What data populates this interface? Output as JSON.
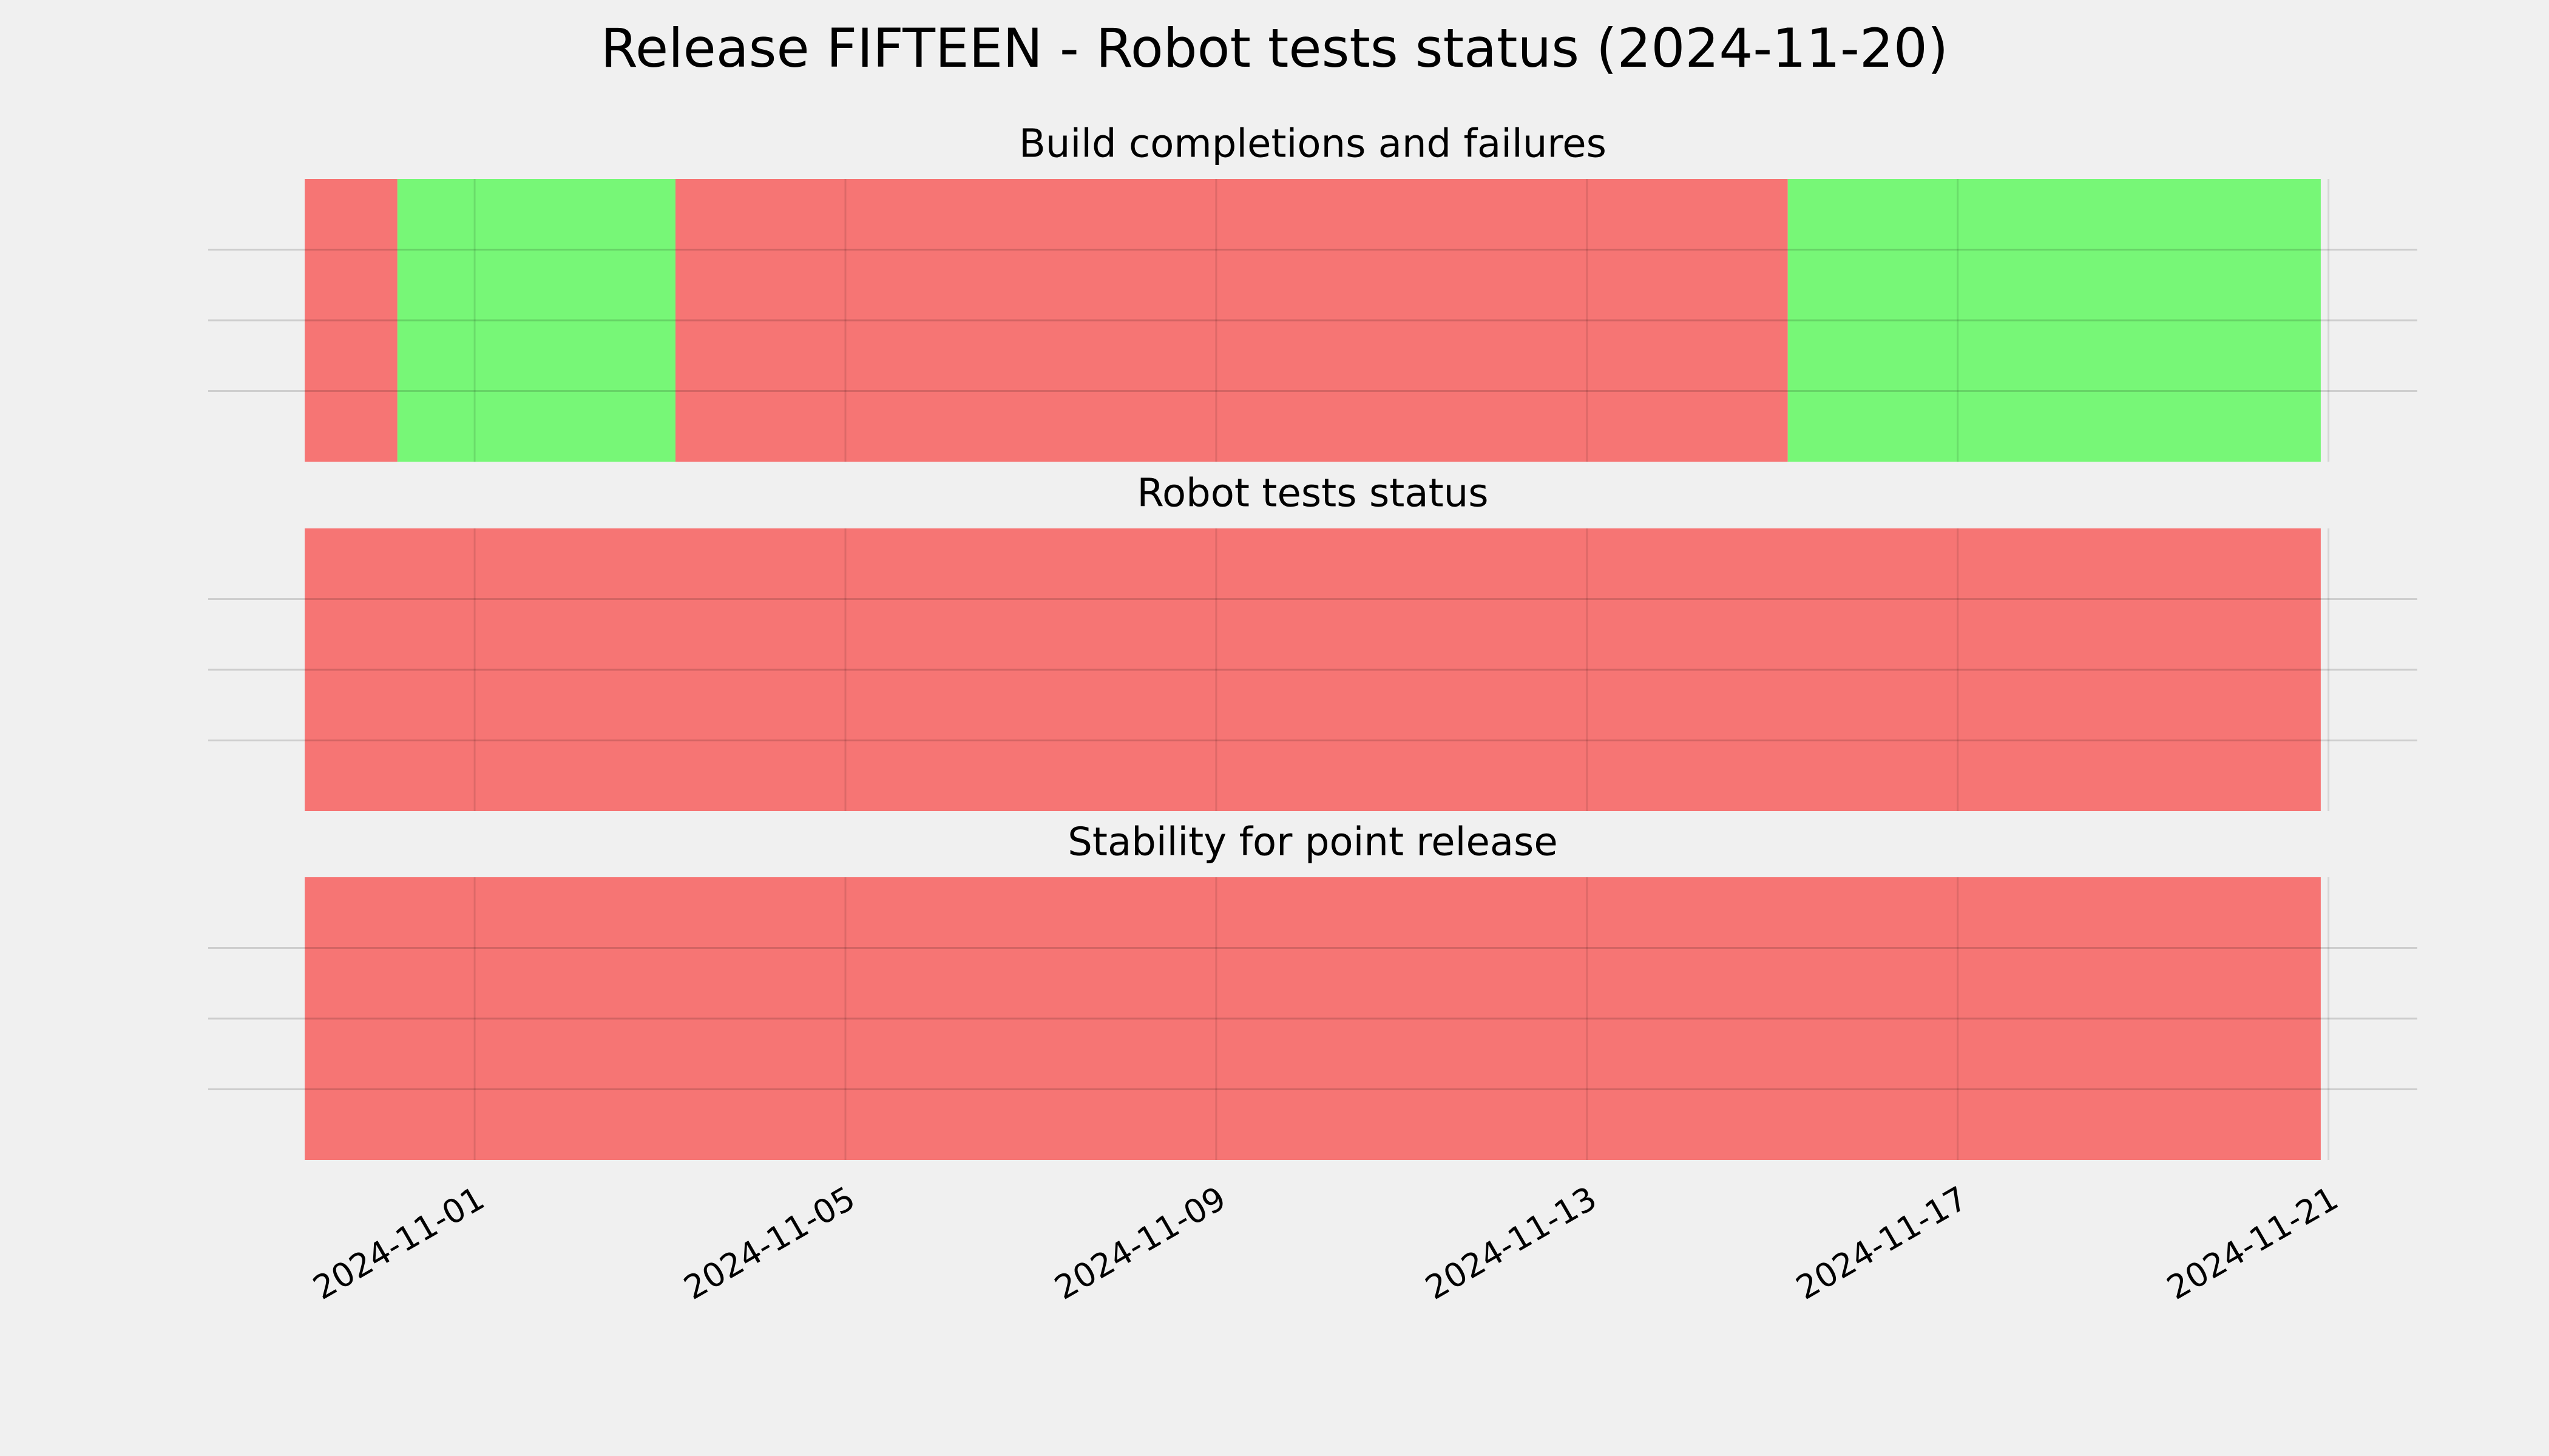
{
  "title": "Release FIFTEEN - Robot tests status (2024-11-20)",
  "x_axis": {
    "xlim": [
      "2024-10-29T03:00:00Z",
      "2024-11-21T23:00:00Z"
    ],
    "xticks": [
      "2024-11-01",
      "2024-11-05",
      "2024-11-09",
      "2024-11-13",
      "2024-11-17",
      "2024-11-21"
    ]
  },
  "chart_data": [
    {
      "type": "timeline",
      "title": "Build completions and failures",
      "ylim": [
        0,
        1
      ],
      "yticks": [
        0.25,
        0.5,
        0.75
      ],
      "grid": true,
      "segments": [
        {
          "start": "2024-10-30T04:00:00Z",
          "end": "2024-10-31T04:00:00Z",
          "color": "#f67574"
        },
        {
          "start": "2024-10-31T04:00:00Z",
          "end": "2024-11-03T04:00:00Z",
          "color": "#77f777"
        },
        {
          "start": "2024-11-03T04:00:00Z",
          "end": "2024-11-15T04:00:00Z",
          "color": "#f67574"
        },
        {
          "start": "2024-11-15T04:00:00Z",
          "end": "2024-11-20T22:00:00Z",
          "color": "#77f777"
        }
      ]
    },
    {
      "type": "timeline",
      "title": "Robot tests status",
      "ylim": [
        0,
        1
      ],
      "yticks": [
        0.25,
        0.5,
        0.75
      ],
      "grid": true,
      "segments": [
        {
          "start": "2024-10-30T04:00:00Z",
          "end": "2024-11-20T22:00:00Z",
          "color": "#f67574"
        }
      ]
    },
    {
      "type": "timeline",
      "title": "Stability for point release",
      "ylim": [
        0,
        1
      ],
      "yticks": [
        0.25,
        0.5,
        0.75
      ],
      "grid": true,
      "segments": [
        {
          "start": "2024-10-30T04:00:00Z",
          "end": "2024-11-20T22:00:00Z",
          "color": "#f67574"
        }
      ]
    }
  ]
}
